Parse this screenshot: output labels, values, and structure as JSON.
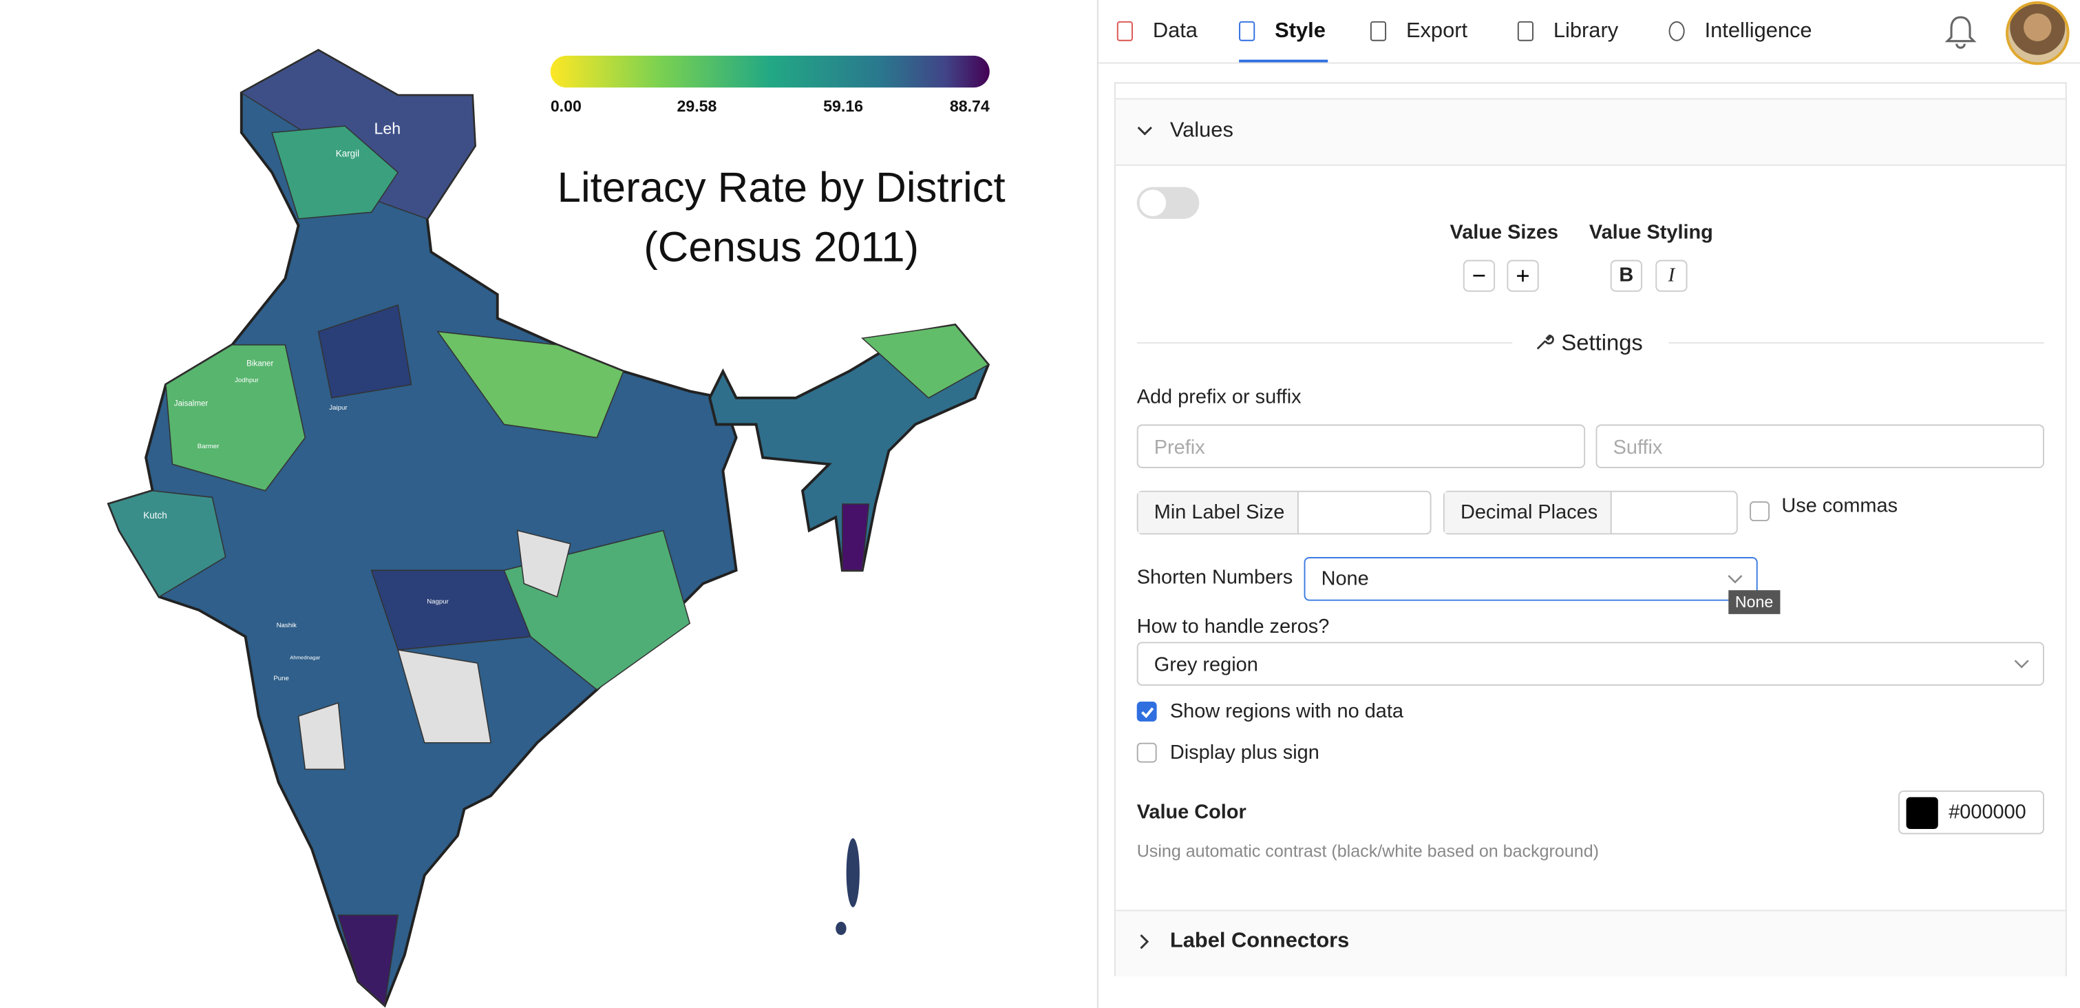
{
  "nav": {
    "tabs": [
      "Data",
      "Style",
      "Export",
      "Library",
      "Intelligence"
    ],
    "active": 1
  },
  "map": {
    "title": [
      "Literacy Rate by District",
      "(Census 2011)"
    ],
    "legend_ticks": [
      "0.00",
      "29.58",
      "59.16",
      "88.74"
    ],
    "labels": [
      "Leh",
      "Kargil",
      "Bikaner",
      "Jaisalmer",
      "Jodhpur",
      "Barmer",
      "Kutch",
      "Nashik",
      "Pune",
      "Nagpur",
      "Jaipur",
      "Ahmednagar"
    ]
  },
  "panel": {
    "values_header": "Values",
    "value_sizes": "Value Sizes",
    "value_styling": "Value Styling",
    "bold": "B",
    "italic": "I",
    "settings": "Settings",
    "prefix_suffix": "Add prefix or suffix",
    "prefix": "Prefix",
    "suffix": "Suffix",
    "min_label_size": "Min Label Size",
    "decimal_places": "Decimal Places",
    "use_commas": "Use commas",
    "shorten_numbers": "Shorten Numbers",
    "shorten_value": "None",
    "tooltip": "None",
    "zeros_question": "How to handle zeros?",
    "zeros_value": "Grey region",
    "show_no_data": "Show regions with no data",
    "show_no_data_checked": true,
    "plus_sign": "Display plus sign",
    "plus_sign_checked": false,
    "value_color": "Value Color",
    "color_hex": "#000000",
    "contrast_note": "Using automatic contrast (black/white based on background)",
    "label_connectors": "Label Connectors"
  }
}
